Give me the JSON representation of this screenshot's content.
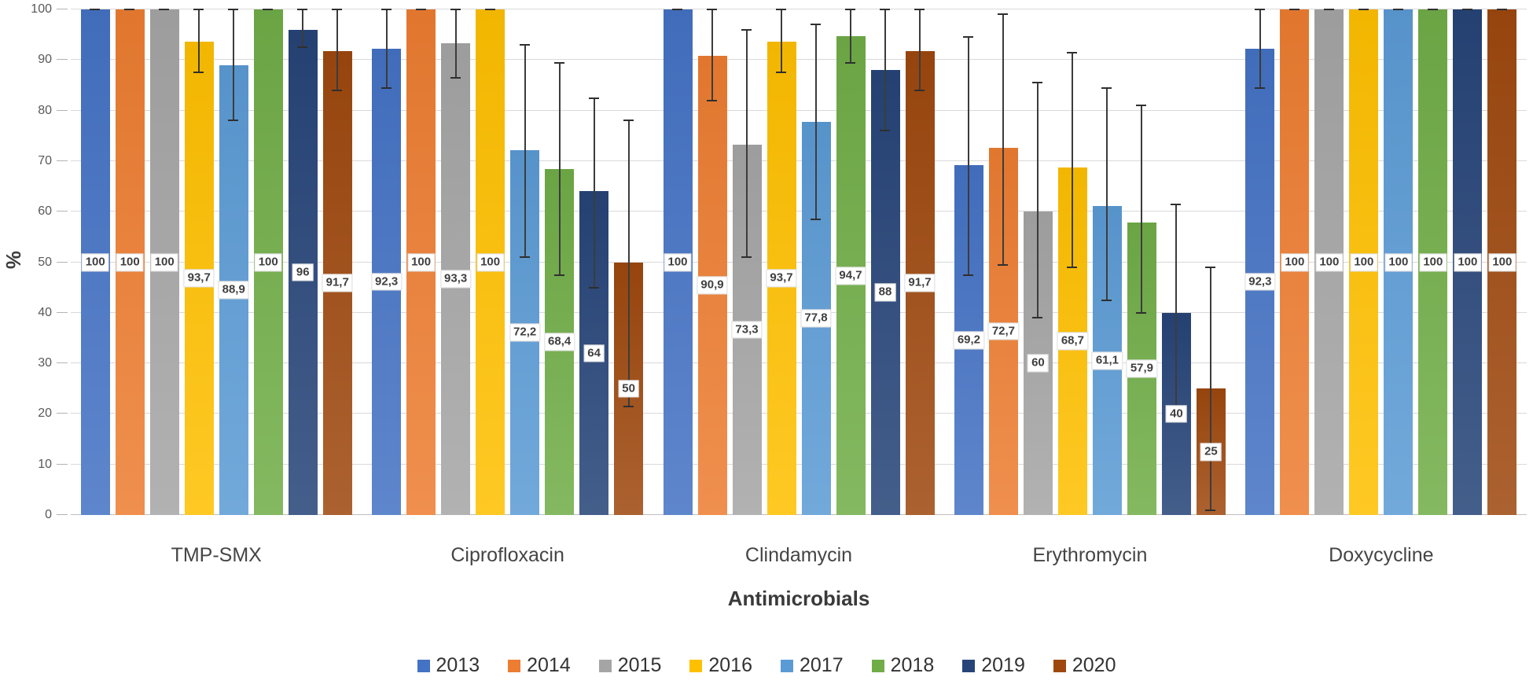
{
  "y_axis": {
    "title": "%",
    "ticks": [
      0,
      10,
      20,
      30,
      40,
      50,
      60,
      70,
      80,
      90,
      100
    ],
    "min": 0,
    "max": 100
  },
  "x_axis": {
    "title": "Antimicrobials"
  },
  "legend": {
    "position": "bottom",
    "items": [
      {
        "label": "2013",
        "color": "#4472C4"
      },
      {
        "label": "2014",
        "color": "#ED7D31"
      },
      {
        "label": "2015",
        "color": "#A5A5A5"
      },
      {
        "label": "2016",
        "color": "#FFC000"
      },
      {
        "label": "2017",
        "color": "#5B9BD5"
      },
      {
        "label": "2018",
        "color": "#70AD47"
      },
      {
        "label": "2019",
        "color": "#264478"
      },
      {
        "label": "2020",
        "color": "#9E480E"
      }
    ]
  },
  "chart_data": {
    "type": "bar",
    "title": "",
    "xlabel": "Antimicrobials",
    "ylabel": "%",
    "ylim": [
      0,
      100
    ],
    "grid": true,
    "legend_position": "bottom",
    "error_bars": true,
    "categories": [
      "TMP-SMX",
      "Ciprofloxacin",
      "Clindamycin",
      "Erythromycin",
      "Doxycycline"
    ],
    "series": [
      {
        "name": "2013",
        "color": "#4472C4",
        "values": [
          100,
          92.3,
          100,
          69.2,
          92.3
        ],
        "labels": [
          "100",
          "92,3",
          "100",
          "69,2",
          "92,3"
        ],
        "error_low": [
          100,
          84.5,
          100,
          47.5,
          84.5
        ],
        "error_high": [
          100,
          100,
          100,
          94.5,
          100
        ]
      },
      {
        "name": "2014",
        "color": "#ED7D31",
        "values": [
          100,
          100,
          90.9,
          72.7,
          100
        ],
        "labels": [
          "100",
          "100",
          "90,9",
          "72,7",
          "100"
        ],
        "error_low": [
          100,
          100,
          82,
          49.5,
          100
        ],
        "error_high": [
          100,
          100,
          100,
          99,
          100
        ]
      },
      {
        "name": "2015",
        "color": "#A5A5A5",
        "values": [
          100,
          93.3,
          73.3,
          60,
          100
        ],
        "labels": [
          "100",
          "93,3",
          "73,3",
          "60",
          "100"
        ],
        "error_low": [
          100,
          86.5,
          51,
          39,
          100
        ],
        "error_high": [
          100,
          100,
          96,
          85.5,
          100
        ]
      },
      {
        "name": "2016",
        "color": "#FFC000",
        "values": [
          93.7,
          100,
          93.7,
          68.7,
          100
        ],
        "labels": [
          "93,7",
          "100",
          "93,7",
          "68,7",
          "100"
        ],
        "error_low": [
          87.5,
          100,
          87.5,
          49,
          100
        ],
        "error_high": [
          100,
          100,
          100,
          91.5,
          100
        ]
      },
      {
        "name": "2017",
        "color": "#5B9BD5",
        "values": [
          88.9,
          72.2,
          77.8,
          61.1,
          100
        ],
        "labels": [
          "88,9",
          "72,2",
          "77,8",
          "61,1",
          "100"
        ],
        "error_low": [
          78,
          51,
          58.5,
          42.5,
          100
        ],
        "error_high": [
          100,
          93,
          97,
          84.5,
          100
        ]
      },
      {
        "name": "2018",
        "color": "#70AD47",
        "values": [
          100,
          68.4,
          94.7,
          57.9,
          100
        ],
        "labels": [
          "100",
          "68,4",
          "94,7",
          "57,9",
          "100"
        ],
        "error_low": [
          100,
          47.5,
          89.5,
          40,
          100
        ],
        "error_high": [
          100,
          89.5,
          100,
          81,
          100
        ]
      },
      {
        "name": "2019",
        "color": "#264478",
        "values": [
          96,
          64,
          88,
          40,
          100
        ],
        "labels": [
          "96",
          "64",
          "88",
          "40",
          "100"
        ],
        "error_low": [
          92.5,
          45,
          76,
          21.5,
          100
        ],
        "error_high": [
          100,
          82.5,
          100,
          61.5,
          100
        ]
      },
      {
        "name": "2020",
        "color": "#9E480E",
        "values": [
          91.7,
          50,
          91.7,
          25,
          100
        ],
        "labels": [
          "91,7",
          "50",
          "91,7",
          "25",
          "100"
        ],
        "error_low": [
          84,
          21.5,
          84,
          1,
          100
        ],
        "error_high": [
          100,
          78,
          100,
          49,
          100
        ]
      }
    ]
  }
}
